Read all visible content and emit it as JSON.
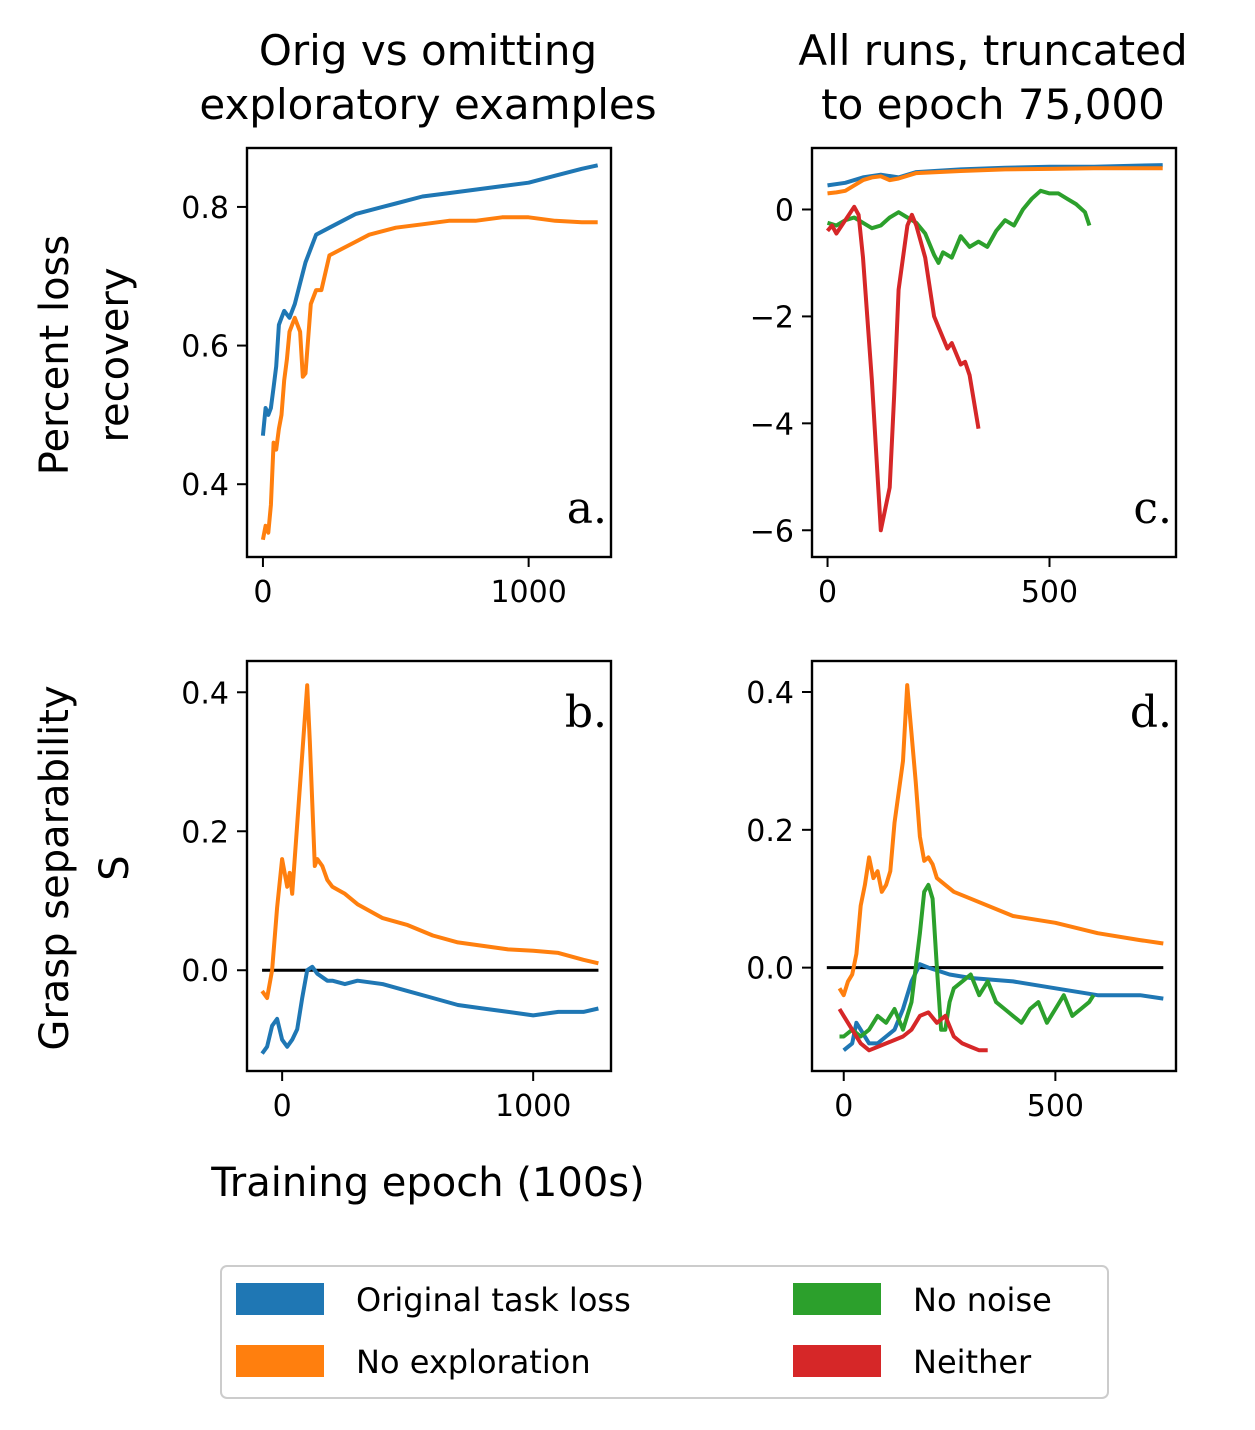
{
  "figure": {
    "ylabel_top": [
      "Percent loss",
      "recovery"
    ],
    "ylabel_bottom": [
      "Grasp separability",
      "S"
    ],
    "xlabel": "Training epoch (100s)"
  },
  "colors": {
    "original": "#1f77b4",
    "no_exploration": "#ff7f0e",
    "no_noise": "#2ca02c",
    "neither": "#d62728"
  },
  "legend": [
    "Original task loss",
    "No exploration",
    "No noise",
    "Neither"
  ],
  "chart_data": [
    {
      "id": "a",
      "type": "line",
      "panel_label": "a.",
      "title": [
        "Orig vs omitting",
        "exploratory examples"
      ],
      "xlim": [
        -60,
        1310
      ],
      "ylim": [
        0.295,
        0.885
      ],
      "xticks": [
        0,
        1000
      ],
      "xtick_labels": [
        "0",
        "1000"
      ],
      "yticks": [
        0.4,
        0.6,
        0.8
      ],
      "ytick_labels": [
        "0.4",
        "0.6",
        "0.8"
      ],
      "series": [
        {
          "name": "Original task loss",
          "color": "#1f77b4",
          "x": [
            0,
            10,
            20,
            30,
            40,
            50,
            60,
            70,
            80,
            100,
            120,
            140,
            160,
            180,
            200,
            250,
            300,
            350,
            400,
            450,
            500,
            600,
            700,
            800,
            900,
            1000,
            1100,
            1200,
            1260
          ],
          "y": [
            0.47,
            0.51,
            0.5,
            0.51,
            0.54,
            0.57,
            0.63,
            0.64,
            0.65,
            0.64,
            0.66,
            0.69,
            0.72,
            0.74,
            0.76,
            0.77,
            0.78,
            0.79,
            0.795,
            0.8,
            0.805,
            0.815,
            0.82,
            0.825,
            0.83,
            0.835,
            0.845,
            0.855,
            0.86
          ]
        },
        {
          "name": "No exploration",
          "color": "#ff7f0e",
          "x": [
            0,
            10,
            20,
            30,
            40,
            50,
            60,
            70,
            80,
            90,
            100,
            120,
            140,
            150,
            160,
            180,
            200,
            220,
            250,
            300,
            350,
            400,
            450,
            500,
            600,
            700,
            800,
            900,
            1000,
            1100,
            1200,
            1260
          ],
          "y": [
            0.32,
            0.34,
            0.33,
            0.37,
            0.46,
            0.45,
            0.48,
            0.5,
            0.55,
            0.58,
            0.62,
            0.64,
            0.62,
            0.555,
            0.56,
            0.66,
            0.68,
            0.68,
            0.73,
            0.74,
            0.75,
            0.76,
            0.765,
            0.77,
            0.775,
            0.78,
            0.78,
            0.785,
            0.785,
            0.78,
            0.778,
            0.778
          ]
        }
      ]
    },
    {
      "id": "b",
      "type": "line",
      "panel_label": "b.",
      "title": [
        "",
        ""
      ],
      "xlim": [
        -140,
        1310
      ],
      "ylim": [
        -0.145,
        0.445
      ],
      "xticks": [
        0,
        1000
      ],
      "xtick_labels": [
        "0",
        "1000"
      ],
      "yticks": [
        0.0,
        0.2,
        0.4
      ],
      "ytick_labels": [
        "0.0",
        "0.2",
        "0.4"
      ],
      "hline": {
        "y": 0.0,
        "x0": -80,
        "x1": 1260
      },
      "series": [
        {
          "name": "Original task loss",
          "color": "#1f77b4",
          "x": [
            -80,
            -60,
            -40,
            -20,
            0,
            20,
            40,
            60,
            80,
            100,
            120,
            140,
            160,
            180,
            200,
            250,
            300,
            400,
            500,
            600,
            700,
            800,
            900,
            1000,
            1100,
            1200,
            1260
          ],
          "y": [
            -0.12,
            -0.11,
            -0.08,
            -0.07,
            -0.1,
            -0.11,
            -0.1,
            -0.085,
            -0.04,
            0.0,
            0.005,
            -0.005,
            -0.01,
            -0.015,
            -0.015,
            -0.02,
            -0.015,
            -0.02,
            -0.03,
            -0.04,
            -0.05,
            -0.055,
            -0.06,
            -0.065,
            -0.06,
            -0.06,
            -0.055
          ]
        },
        {
          "name": "No exploration",
          "color": "#ff7f0e",
          "x": [
            -80,
            -60,
            -40,
            -20,
            0,
            20,
            30,
            40,
            60,
            80,
            100,
            110,
            120,
            130,
            140,
            160,
            180,
            200,
            250,
            300,
            400,
            500,
            600,
            700,
            800,
            900,
            1000,
            1100,
            1200,
            1260
          ],
          "y": [
            -0.03,
            -0.04,
            0.0,
            0.09,
            0.16,
            0.12,
            0.14,
            0.11,
            0.21,
            0.31,
            0.41,
            0.33,
            0.24,
            0.15,
            0.16,
            0.15,
            0.13,
            0.12,
            0.11,
            0.095,
            0.075,
            0.065,
            0.05,
            0.04,
            0.035,
            0.03,
            0.028,
            0.025,
            0.015,
            0.01
          ]
        }
      ]
    },
    {
      "id": "c",
      "type": "line",
      "panel_label": "c.",
      "title": [
        "All runs, truncated",
        "to epoch 75,000"
      ],
      "xlim": [
        -35,
        785
      ],
      "ylim": [
        -6.5,
        1.15
      ],
      "xticks": [
        0,
        500
      ],
      "xtick_labels": [
        "0",
        "500"
      ],
      "yticks": [
        -6,
        -4,
        -2,
        0
      ],
      "ytick_labels": [
        "−6",
        "−4",
        "−2",
        "0"
      ],
      "series": [
        {
          "name": "Original task loss",
          "color": "#1f77b4",
          "x": [
            0,
            40,
            80,
            120,
            160,
            200,
            300,
            400,
            500,
            600,
            700,
            755
          ],
          "y": [
            0.45,
            0.5,
            0.6,
            0.65,
            0.6,
            0.7,
            0.75,
            0.78,
            0.8,
            0.8,
            0.82,
            0.83
          ]
        },
        {
          "name": "No exploration",
          "color": "#ff7f0e",
          "x": [
            0,
            20,
            40,
            60,
            80,
            100,
            120,
            140,
            160,
            200,
            300,
            400,
            500,
            600,
            700,
            755
          ],
          "y": [
            0.3,
            0.32,
            0.35,
            0.45,
            0.55,
            0.6,
            0.62,
            0.55,
            0.58,
            0.68,
            0.72,
            0.75,
            0.76,
            0.77,
            0.77,
            0.77
          ]
        },
        {
          "name": "No noise",
          "color": "#2ca02c",
          "x": [
            0,
            20,
            40,
            60,
            80,
            100,
            120,
            140,
            160,
            180,
            200,
            220,
            240,
            250,
            260,
            280,
            300,
            320,
            340,
            360,
            380,
            400,
            420,
            440,
            460,
            480,
            500,
            520,
            540,
            560,
            580,
            590
          ],
          "y": [
            -0.25,
            -0.3,
            -0.2,
            -0.15,
            -0.25,
            -0.35,
            -0.3,
            -0.15,
            -0.05,
            -0.15,
            -0.25,
            -0.45,
            -0.85,
            -1.0,
            -0.8,
            -0.9,
            -0.5,
            -0.7,
            -0.6,
            -0.7,
            -0.4,
            -0.2,
            -0.3,
            0.0,
            0.2,
            0.35,
            0.3,
            0.3,
            0.2,
            0.1,
            -0.05,
            -0.3
          ]
        },
        {
          "name": "Neither",
          "color": "#d62728",
          "x": [
            0,
            10,
            20,
            40,
            60,
            70,
            80,
            100,
            120,
            140,
            150,
            160,
            180,
            190,
            200,
            220,
            240,
            250,
            270,
            280,
            300,
            310,
            320,
            340
          ],
          "y": [
            -0.4,
            -0.3,
            -0.45,
            -0.2,
            0.05,
            -0.1,
            -0.9,
            -3.2,
            -6.0,
            -5.2,
            -3.5,
            -1.5,
            -0.3,
            -0.1,
            -0.3,
            -0.9,
            -2.0,
            -2.2,
            -2.6,
            -2.5,
            -2.9,
            -2.85,
            -3.1,
            -4.1
          ]
        }
      ]
    },
    {
      "id": "d",
      "type": "line",
      "panel_label": "d.",
      "title": [
        "",
        ""
      ],
      "xlim": [
        -75,
        785
      ],
      "ylim": [
        -0.15,
        0.445
      ],
      "xticks": [
        0,
        500
      ],
      "xtick_labels": [
        "0",
        "500"
      ],
      "yticks": [
        0.0,
        0.2,
        0.4
      ],
      "ytick_labels": [
        "0.0",
        "0.2",
        "0.4"
      ],
      "hline": {
        "y": 0.0,
        "x0": -40,
        "x1": 755
      },
      "series": [
        {
          "name": "Original task loss",
          "color": "#1f77b4",
          "x": [
            0,
            20,
            30,
            40,
            60,
            80,
            100,
            120,
            140,
            160,
            180,
            200,
            250,
            300,
            400,
            500,
            600,
            700,
            755
          ],
          "y": [
            -0.12,
            -0.11,
            -0.08,
            -0.09,
            -0.11,
            -0.11,
            -0.1,
            -0.09,
            -0.06,
            -0.02,
            0.005,
            0.0,
            -0.01,
            -0.015,
            -0.02,
            -0.03,
            -0.04,
            -0.04,
            -0.045
          ]
        },
        {
          "name": "No exploration",
          "color": "#ff7f0e",
          "x": [
            -10,
            0,
            10,
            20,
            30,
            40,
            50,
            60,
            70,
            80,
            90,
            100,
            110,
            120,
            140,
            150,
            160,
            170,
            180,
            190,
            200,
            210,
            220,
            240,
            260,
            300,
            400,
            500,
            600,
            700,
            755
          ],
          "y": [
            -0.03,
            -0.04,
            -0.02,
            -0.01,
            0.02,
            0.09,
            0.12,
            0.16,
            0.13,
            0.14,
            0.11,
            0.12,
            0.14,
            0.21,
            0.3,
            0.41,
            0.34,
            0.27,
            0.19,
            0.155,
            0.16,
            0.15,
            0.13,
            0.12,
            0.11,
            0.1,
            0.075,
            0.065,
            0.05,
            0.04,
            0.035
          ]
        },
        {
          "name": "No noise",
          "color": "#2ca02c",
          "x": [
            -10,
            0,
            20,
            40,
            60,
            80,
            100,
            120,
            140,
            160,
            170,
            180,
            190,
            200,
            210,
            220,
            230,
            240,
            250,
            260,
            280,
            300,
            320,
            340,
            360,
            380,
            400,
            420,
            440,
            460,
            480,
            500,
            520,
            540,
            560,
            580,
            590
          ],
          "y": [
            -0.1,
            -0.1,
            -0.09,
            -0.1,
            -0.09,
            -0.07,
            -0.08,
            -0.06,
            -0.09,
            -0.05,
            0.0,
            0.05,
            0.11,
            0.12,
            0.1,
            0.0,
            -0.09,
            -0.09,
            -0.05,
            -0.03,
            -0.02,
            -0.01,
            -0.04,
            -0.02,
            -0.05,
            -0.06,
            -0.07,
            -0.08,
            -0.06,
            -0.05,
            -0.08,
            -0.06,
            -0.04,
            -0.07,
            -0.06,
            -0.05,
            -0.04
          ]
        },
        {
          "name": "Neither",
          "color": "#d62728",
          "x": [
            -10,
            0,
            20,
            40,
            60,
            80,
            100,
            120,
            140,
            160,
            180,
            200,
            220,
            240,
            260,
            280,
            300,
            320,
            340
          ],
          "y": [
            -0.06,
            -0.07,
            -0.09,
            -0.11,
            -0.12,
            -0.115,
            -0.11,
            -0.105,
            -0.1,
            -0.09,
            -0.07,
            -0.065,
            -0.08,
            -0.07,
            -0.1,
            -0.11,
            -0.115,
            -0.12,
            -0.12
          ]
        }
      ]
    }
  ]
}
